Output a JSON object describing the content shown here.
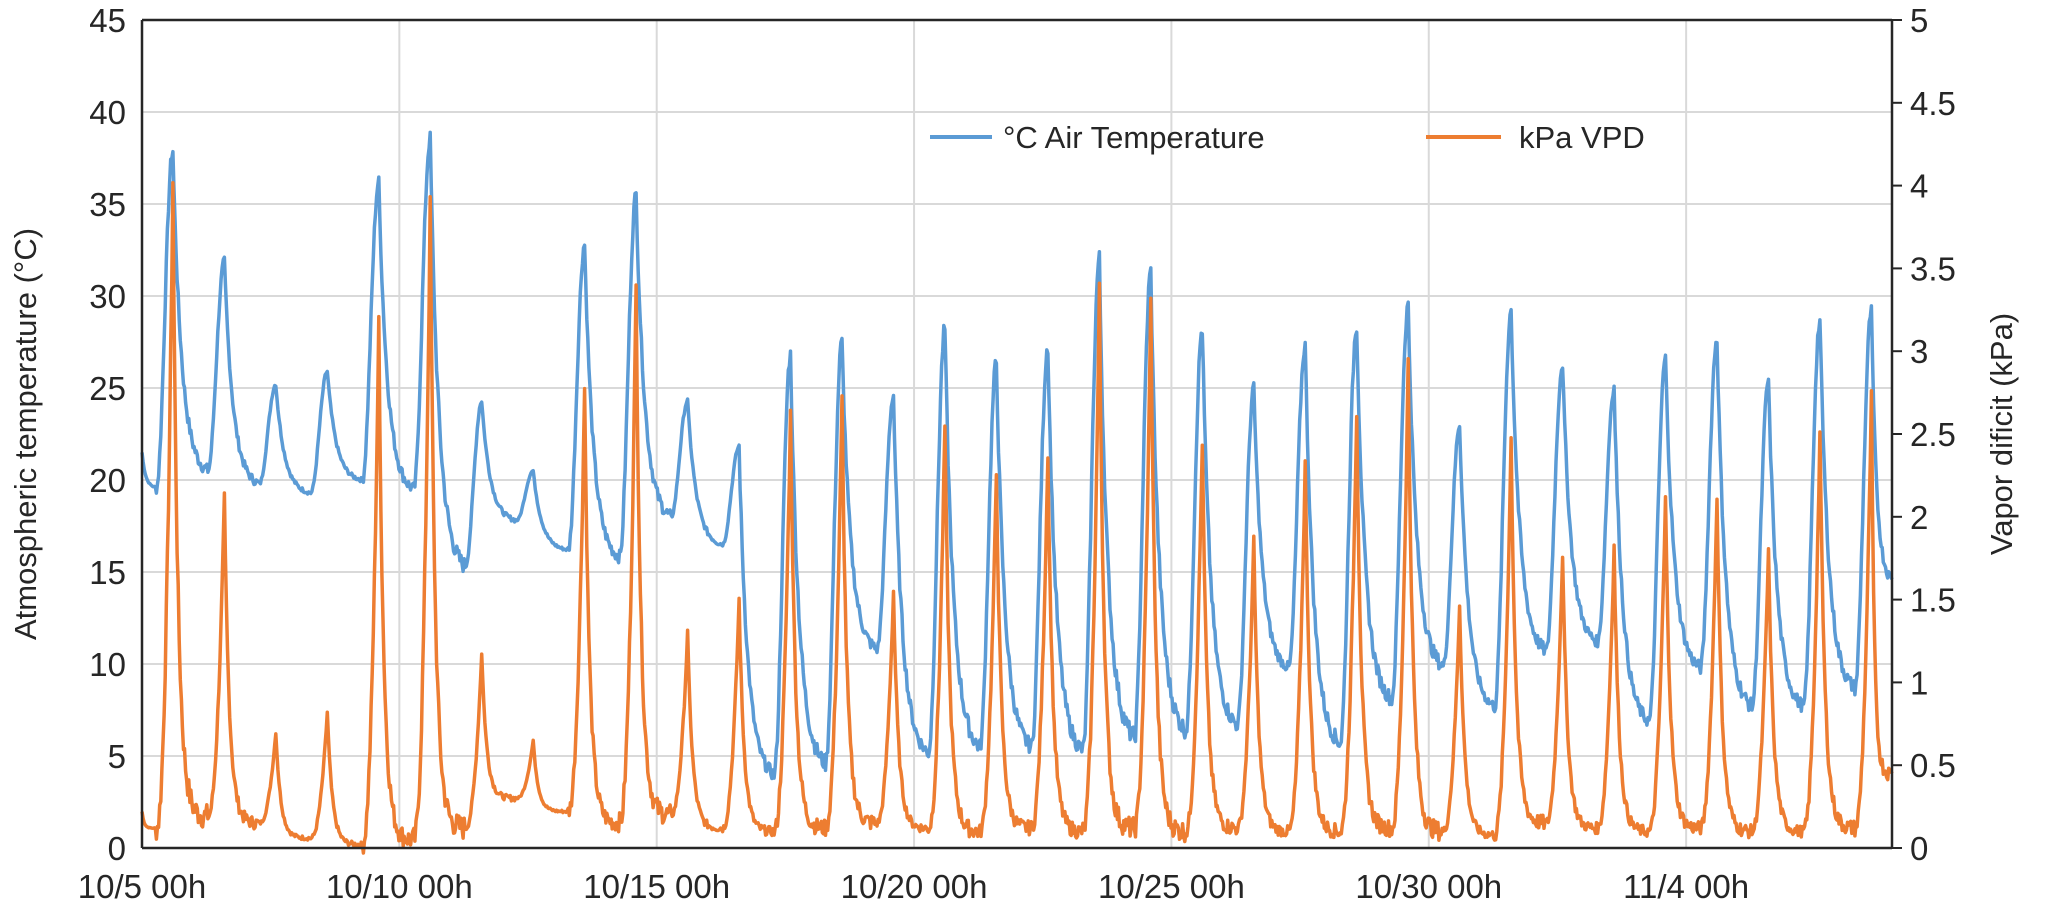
{
  "chart_data": {
    "type": "line",
    "title": "",
    "xlabel": "",
    "ylabel": "Atmospheric temperature (°C)",
    "y2label": "Vapor dificit (kPa)",
    "x_unit": "days since 10/5 00h",
    "xlim": [
      0,
      34
    ],
    "ylim": [
      0,
      45
    ],
    "y2lim": [
      0,
      5
    ],
    "grid": true,
    "legend_position": "top-right",
    "x_ticks": [
      {
        "day": 0,
        "label": "10/5 00h"
      },
      {
        "day": 5,
        "label": "10/10 00h"
      },
      {
        "day": 10,
        "label": "10/15 00h"
      },
      {
        "day": 15,
        "label": "10/20 00h"
      },
      {
        "day": 20,
        "label": "10/25 00h"
      },
      {
        "day": 25,
        "label": "10/30 00h"
      },
      {
        "day": 30,
        "label": "11/4 00h"
      }
    ],
    "y_ticks": [
      "0",
      "5",
      "10",
      "15",
      "20",
      "25",
      "30",
      "35",
      "40",
      "45"
    ],
    "y2_ticks": [
      "0",
      "0.5",
      "1",
      "1.5",
      "2",
      "2.5",
      "3",
      "3.5",
      "4",
      "4.5",
      "5"
    ],
    "days": [
      "10/5",
      "10/6",
      "10/7",
      "10/8",
      "10/9",
      "10/10",
      "10/11",
      "10/12",
      "10/13",
      "10/14",
      "10/15",
      "10/16",
      "10/17",
      "10/18",
      "10/19",
      "10/20",
      "10/21",
      "10/22",
      "10/23",
      "10/24",
      "10/25",
      "10/26",
      "10/27",
      "10/28",
      "10/29",
      "10/30",
      "10/31",
      "11/1",
      "11/2",
      "11/3",
      "11/4",
      "11/5",
      "11/6",
      "11/7"
    ],
    "series": [
      {
        "name": "°C Air Temperature",
        "axis": "left",
        "color": "#5B9BD5",
        "start_value": 21.5,
        "end_value": 14.6,
        "daily_min": [
          19.6,
          20.5,
          19.8,
          19.3,
          20.0,
          19.5,
          15.3,
          17.8,
          16.2,
          15.8,
          18.0,
          16.5,
          4.0,
          4.6,
          10.8,
          5.2,
          5.5,
          5.5,
          5.3,
          6.0,
          6.4,
          6.7,
          9.8,
          5.7,
          8.1,
          9.9,
          7.7,
          10.7,
          11.2,
          6.9,
          9.8,
          7.7,
          7.7,
          8.7
        ],
        "daily_max": [
          37.9,
          31.9,
          25.2,
          25.9,
          36.2,
          38.5,
          24.3,
          20.5,
          32.8,
          35.5,
          24.3,
          21.8,
          26.8,
          27.5,
          24.6,
          28.2,
          26.4,
          27.3,
          32.0,
          31.3,
          28.2,
          25.0,
          27.3,
          28.4,
          29.5,
          23.0,
          29.2,
          26.3,
          25.0,
          26.6,
          27.7,
          25.4,
          28.6,
          29.2
        ]
      },
      {
        "name": "kPa VPD",
        "axis": "right",
        "color": "#ED7D31",
        "start_value": 0.22,
        "end_value": 0.45,
        "daily_min": [
          0.12,
          0.19,
          0.15,
          0.06,
          0.02,
          0.05,
          0.12,
          0.3,
          0.22,
          0.15,
          0.2,
          0.12,
          0.1,
          0.12,
          0.15,
          0.12,
          0.1,
          0.12,
          0.1,
          0.12,
          0.1,
          0.12,
          0.1,
          0.1,
          0.12,
          0.1,
          0.08,
          0.15,
          0.12,
          0.1,
          0.12,
          0.1,
          0.1,
          0.12
        ],
        "daily_max": [
          4.03,
          2.11,
          0.7,
          0.82,
          3.16,
          3.87,
          1.18,
          0.65,
          2.78,
          3.38,
          1.3,
          1.5,
          2.62,
          2.7,
          1.55,
          2.55,
          2.26,
          2.4,
          3.36,
          3.29,
          2.46,
          1.85,
          2.32,
          2.65,
          2.93,
          1.47,
          2.47,
          1.78,
          1.82,
          2.1,
          2.13,
          1.8,
          2.5,
          2.72
        ]
      }
    ]
  }
}
